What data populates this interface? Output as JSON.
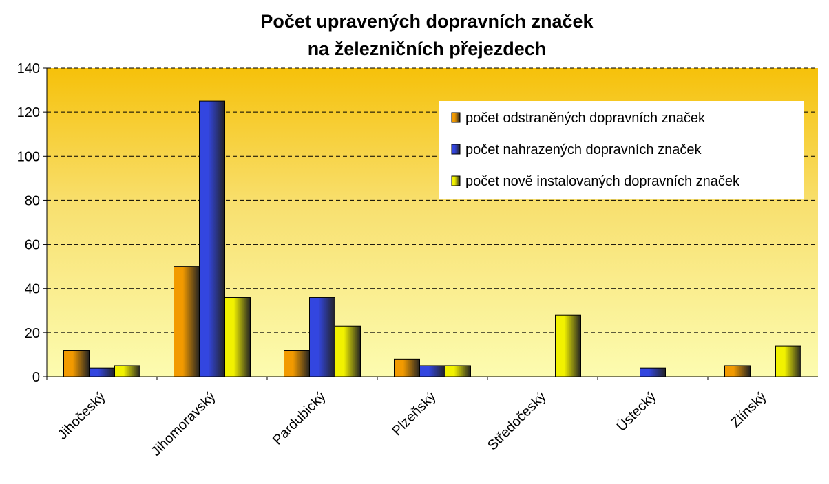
{
  "chart_data": {
    "type": "bar",
    "title": [
      "Počet upravených dopravních značek",
      "na železničních přejezdech"
    ],
    "categories": [
      "Jihočeský",
      "Jihomoravský",
      "Pardubický",
      "Plzeňský",
      "Středočeský",
      "Ústecký",
      "Zlínský"
    ],
    "series": [
      {
        "name": "počet odstraněných dopravních značek",
        "color": "#f29a00",
        "values": [
          12,
          50,
          12,
          8,
          0,
          0,
          5
        ]
      },
      {
        "name": "počet nahrazených dopravních značek",
        "color": "#3346e0",
        "values": [
          4,
          125,
          36,
          5,
          0,
          4,
          0
        ]
      },
      {
        "name": "počet nově instalovaných dopravních značek",
        "color": "#f2f200",
        "values": [
          5,
          36,
          23,
          5,
          28,
          0,
          14
        ]
      }
    ],
    "ylim": [
      0,
      140
    ],
    "yticks": [
      0,
      20,
      40,
      60,
      80,
      100,
      120,
      140
    ],
    "grid": true,
    "legend": "upper right"
  }
}
